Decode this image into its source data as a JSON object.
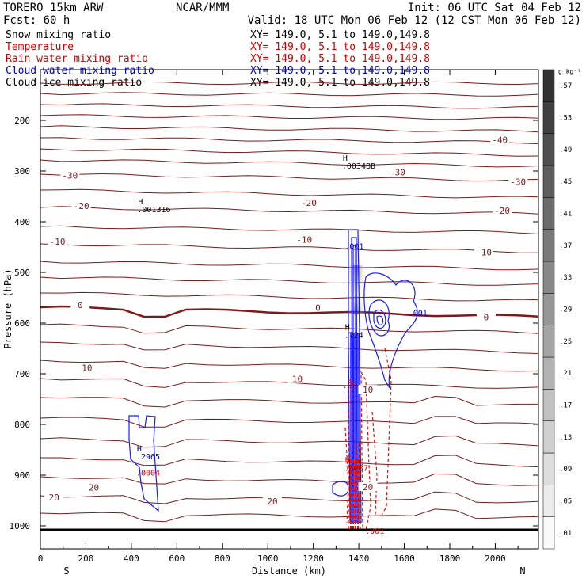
{
  "header": {
    "model": "TORERO  15km ARW",
    "center": "NCAR/MMM",
    "init": "Init: 06 UTC Sat 04 Feb 12",
    "fcst": "Fcst:   60 h",
    "valid": "Valid: 18 UTC Mon 06 Feb 12 (12 CST Mon 06 Feb 12)"
  },
  "legend": [
    {
      "name": "Snow mixing ratio",
      "xy": "XY= 149.0,  5.1 to 149.0,149.8",
      "color": "#000000"
    },
    {
      "name": "Temperature",
      "xy": "XY= 149.0,  5.1 to 149.0,149.8",
      "color": "#cc0000"
    },
    {
      "name": "Rain water mixing ratio",
      "xy": "XY= 149.0,  5.1 to 149.0,149.8",
      "color": "#cc0000"
    },
    {
      "name": "Cloud water mixing ratio",
      "xy": "XY= 149.0,  5.1 to 149.0,149.8",
      "color": "#0000cc"
    },
    {
      "name": "Cloud ice mixing ratio",
      "xy": "XY= 149.0,  5.1 to 149.0,149.8",
      "color": "#000000"
    }
  ],
  "colorbar": {
    "unit": "g kg⁻¹",
    "ticks": [
      ".01",
      ".05",
      ".09",
      ".13",
      ".17",
      ".21",
      ".25",
      ".29",
      ".33",
      ".37",
      ".41",
      ".45",
      ".49",
      ".53",
      ".57"
    ]
  },
  "chart_data": {
    "type": "cross-section",
    "xlabel": "Distance (km)",
    "ylabel": "Pressure (hPa)",
    "xlim": [
      0,
      2190
    ],
    "ylim": [
      1070,
      90
    ],
    "xticks": [
      0,
      200,
      400,
      600,
      800,
      1000,
      1200,
      1400,
      1600,
      1800,
      2000
    ],
    "yticks": [
      200,
      300,
      400,
      500,
      600,
      700,
      800,
      900,
      1000
    ],
    "x_end_labels": {
      "left": "S",
      "right": "N"
    },
    "isotherm_labels": [
      {
        "text": "-40",
        "x": 2020,
        "p": 240
      },
      {
        "text": "-30",
        "x": 130,
        "p": 310
      },
      {
        "text": "-30",
        "x": 1570,
        "p": 304
      },
      {
        "text": "-30",
        "x": 2100,
        "p": 323
      },
      {
        "text": "-20",
        "x": 180,
        "p": 370
      },
      {
        "text": "-20",
        "x": 1180,
        "p": 364
      },
      {
        "text": "-20",
        "x": 2030,
        "p": 380
      },
      {
        "text": "-10",
        "x": 75,
        "p": 441
      },
      {
        "text": "-10",
        "x": 1160,
        "p": 437
      },
      {
        "text": "-10",
        "x": 1950,
        "p": 462
      },
      {
        "text": "0",
        "x": 175,
        "p": 566
      },
      {
        "text": "0",
        "x": 1220,
        "p": 571
      },
      {
        "text": "0",
        "x": 1960,
        "p": 590
      },
      {
        "text": "10",
        "x": 205,
        "p": 690
      },
      {
        "text": "10",
        "x": 1130,
        "p": 712
      },
      {
        "text": "10",
        "x": 1440,
        "p": 733
      },
      {
        "text": "20",
        "x": 235,
        "p": 926
      },
      {
        "text": "20",
        "x": 1020,
        "p": 953
      },
      {
        "text": "20",
        "x": 1440,
        "p": 925
      },
      {
        "text": "20",
        "x": 60,
        "p": 945
      }
    ],
    "markers": [
      {
        "text": "H",
        "value": ".001316",
        "x": 440,
        "p": 366,
        "color": "#000000"
      },
      {
        "text": "H",
        "value": ".0034BB",
        "x": 1340,
        "p": 280,
        "color": "#000000"
      },
      {
        "text": "H",
        "value": ".724",
        "x": 1350,
        "p": 613,
        "color": "#000000"
      },
      {
        "text": "H",
        "value": ".2965",
        "x": 435,
        "p": 853,
        "color": "#0000cc"
      },
      {
        "text": "",
        "value": ".0004",
        "x": 435,
        "p": 885,
        "color": "#cc0000"
      },
      {
        "text": "H",
        "value": ".6087",
        "x": 1350,
        "p": 876,
        "color": "#cc0000"
      }
    ],
    "contour_labels": [
      {
        "text": ".001",
        "x": 1380,
        "p": 454,
        "color": "#0000cc"
      },
      {
        "text": ".001",
        "x": 1660,
        "p": 585,
        "color": "#0000cc"
      },
      {
        "text": ".00",
        "x": 1360,
        "p": 728,
        "color": "#cc0000"
      },
      {
        "text": ".001",
        "x": 1470,
        "p": 1016,
        "color": "#cc0000"
      }
    ]
  }
}
